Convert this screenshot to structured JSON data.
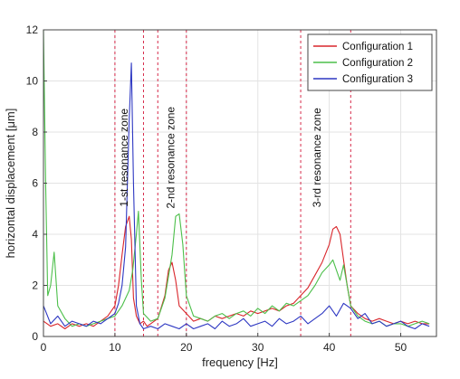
{
  "chart_data": {
    "type": "line",
    "title": "",
    "xlabel": "frequency [Hz]",
    "ylabel": "horizontal displacement [μm]",
    "xlim": [
      0,
      55
    ],
    "ylim": [
      0,
      12
    ],
    "xticks": [
      "0",
      "10",
      "20",
      "30",
      "40",
      "50"
    ],
    "yticks": [
      "0",
      "2",
      "4",
      "6",
      "8",
      "10",
      "12"
    ],
    "grid": true,
    "legend_position": "top-right",
    "zone_lines": [
      10,
      14,
      16,
      20,
      36,
      43
    ],
    "zone_line_color": "#d62a4a",
    "zones": [
      {
        "label": "1-st resonance zone",
        "x": 11.8,
        "y": 7.0
      },
      {
        "label": "2-nd resonance zone",
        "x": 18.3,
        "y": 7.0
      },
      {
        "label": "3-rd resonance zone",
        "x": 38.8,
        "y": 7.0
      }
    ],
    "series": [
      {
        "name": "Configuration 1",
        "color": "#d9262b",
        "x": [
          0,
          1,
          2,
          3,
          4,
          5,
          6,
          7,
          8,
          9,
          10,
          10.5,
          11,
          11.5,
          12,
          12.3,
          12.6,
          13,
          13.5,
          14,
          14.5,
          15,
          16,
          17,
          17.5,
          18,
          18.5,
          19,
          20,
          21,
          22,
          23,
          24,
          25,
          26,
          27,
          28,
          29,
          30,
          31,
          32,
          33,
          34,
          35,
          36,
          37,
          38,
          39,
          40,
          40.5,
          41,
          41.5,
          42,
          42.5,
          43,
          44,
          45,
          46,
          47,
          48,
          49,
          50,
          51,
          52,
          53,
          54
        ],
        "values": [
          0.6,
          0.4,
          0.5,
          0.3,
          0.5,
          0.4,
          0.5,
          0.4,
          0.6,
          0.8,
          1.2,
          2.0,
          3.2,
          4.3,
          4.7,
          3.8,
          1.5,
          0.8,
          0.5,
          0.6,
          0.4,
          0.5,
          0.7,
          1.6,
          2.6,
          2.9,
          2.2,
          1.2,
          0.9,
          0.6,
          0.7,
          0.6,
          0.8,
          0.7,
          0.8,
          0.9,
          0.8,
          1.0,
          0.9,
          1.0,
          1.1,
          1.0,
          1.2,
          1.3,
          1.6,
          1.9,
          2.4,
          2.9,
          3.6,
          4.2,
          4.3,
          4.0,
          3.0,
          2.0,
          1.2,
          0.9,
          0.7,
          0.6,
          0.7,
          0.6,
          0.5,
          0.6,
          0.5,
          0.6,
          0.5,
          0.5
        ]
      },
      {
        "name": "Configuration 2",
        "color": "#4cbf4a",
        "x": [
          0,
          0.3,
          0.6,
          1,
          1.5,
          2,
          3,
          4,
          5,
          6,
          7,
          8,
          9,
          10,
          11,
          12,
          12.5,
          13,
          13.3,
          13.7,
          14,
          15,
          16,
          17,
          18,
          18.5,
          19,
          19.5,
          20,
          21,
          22,
          23,
          24,
          25,
          26,
          27,
          28,
          29,
          30,
          31,
          32,
          33,
          34,
          35,
          36,
          37,
          38,
          39,
          40,
          40.5,
          41,
          41.5,
          42,
          43,
          44,
          45,
          46,
          47,
          48,
          49,
          50,
          51,
          52,
          53,
          54
        ],
        "values": [
          12.0,
          6.0,
          1.6,
          2.0,
          3.3,
          1.2,
          0.7,
          0.4,
          0.5,
          0.4,
          0.5,
          0.6,
          0.7,
          0.8,
          1.2,
          1.8,
          2.6,
          4.0,
          4.9,
          2.2,
          0.9,
          0.6,
          0.7,
          1.5,
          3.2,
          4.7,
          4.8,
          3.6,
          1.6,
          0.8,
          0.7,
          0.6,
          0.8,
          0.9,
          0.7,
          0.9,
          1.0,
          0.8,
          1.1,
          0.9,
          1.2,
          1.0,
          1.3,
          1.2,
          1.4,
          1.6,
          2.0,
          2.5,
          2.8,
          3.0,
          2.6,
          2.2,
          2.8,
          1.2,
          0.8,
          0.6,
          0.5,
          0.6,
          0.4,
          0.5,
          0.5,
          0.4,
          0.5,
          0.6,
          0.5
        ]
      },
      {
        "name": "Configuration 3",
        "color": "#2d37c2",
        "x": [
          0,
          1,
          2,
          3,
          4,
          5,
          6,
          7,
          8,
          9,
          10,
          10.5,
          11,
          11.5,
          12,
          12.3,
          12.6,
          13,
          13.5,
          14,
          15,
          16,
          17,
          18,
          19,
          20,
          21,
          22,
          23,
          24,
          25,
          26,
          27,
          28,
          29,
          30,
          31,
          32,
          33,
          34,
          35,
          36,
          37,
          38,
          39,
          40,
          41,
          42,
          43,
          44,
          45,
          46,
          47,
          48,
          49,
          50,
          51,
          52,
          53,
          54
        ],
        "values": [
          1.2,
          0.5,
          0.8,
          0.4,
          0.6,
          0.5,
          0.4,
          0.6,
          0.5,
          0.7,
          0.9,
          1.3,
          2.0,
          3.5,
          8.5,
          10.7,
          6.0,
          1.2,
          0.5,
          0.3,
          0.4,
          0.3,
          0.5,
          0.4,
          0.3,
          0.5,
          0.3,
          0.4,
          0.5,
          0.3,
          0.6,
          0.4,
          0.5,
          0.7,
          0.4,
          0.5,
          0.6,
          0.4,
          0.7,
          0.5,
          0.6,
          0.8,
          0.5,
          0.7,
          0.9,
          1.2,
          0.8,
          1.3,
          1.1,
          0.7,
          0.9,
          0.5,
          0.6,
          0.4,
          0.5,
          0.6,
          0.4,
          0.3,
          0.5,
          0.4
        ]
      }
    ]
  }
}
